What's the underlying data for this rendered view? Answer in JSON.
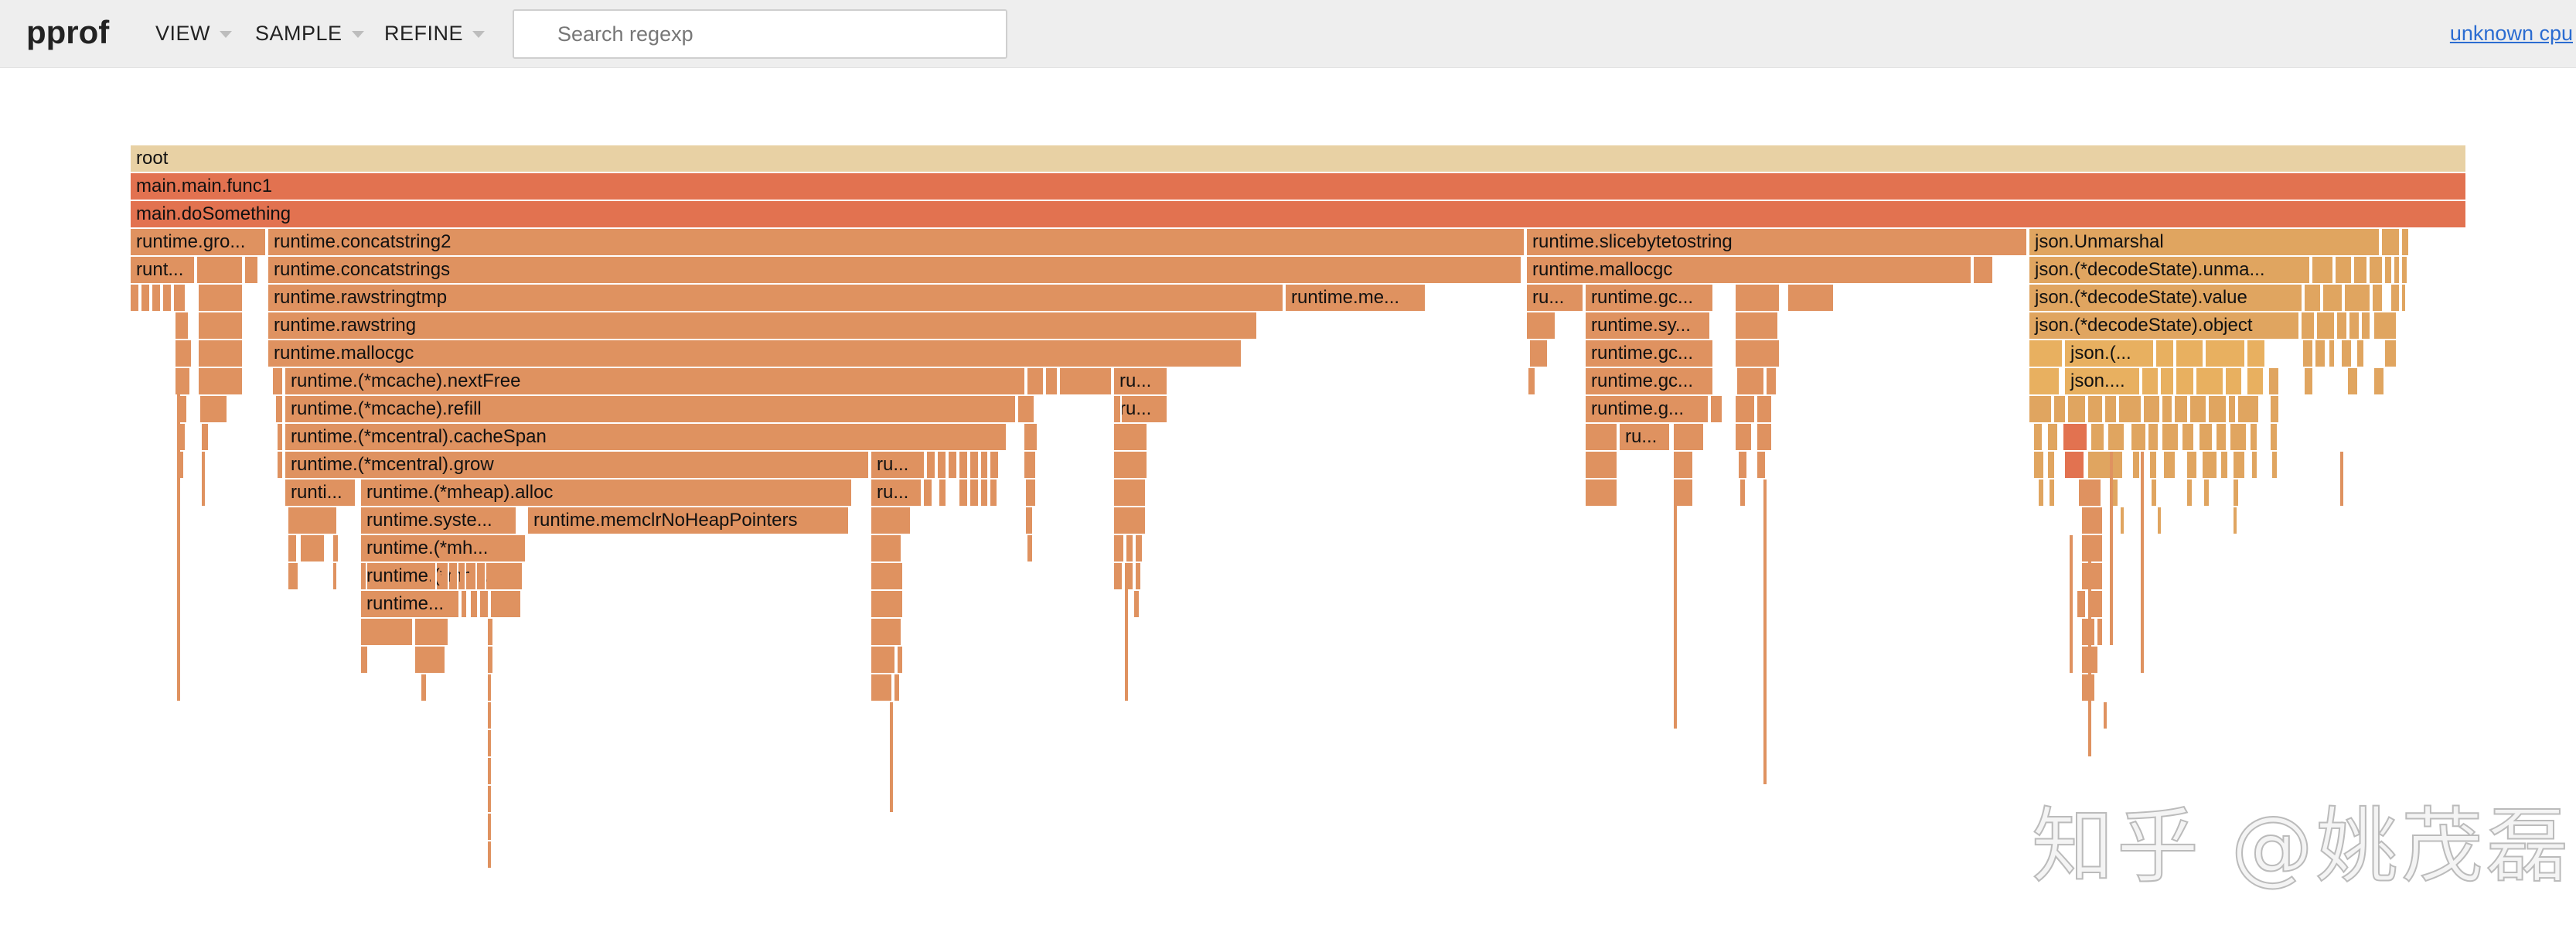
{
  "header": {
    "app_title": "pprof",
    "menus": [
      {
        "label": "VIEW"
      },
      {
        "label": "SAMPLE"
      },
      {
        "label": "REFINE"
      }
    ],
    "search_placeholder": "Search regexp",
    "search_value": "",
    "profile_link": "unknown cpu"
  },
  "colors": {
    "root": "#e8d1a4",
    "hot": "#e27250",
    "warm": "#df9260",
    "light": "#e0a560",
    "pale": "#e8b060"
  },
  "flame": {
    "frames": [
      {
        "label": "root"
      },
      {
        "label": "main.main.func1"
      },
      {
        "label": "main.doSomething"
      },
      {
        "label": "runtime.gro..."
      },
      {
        "label": "runtime.concatstring2"
      },
      {
        "label": "runtime.slicebytetostring"
      },
      {
        "label": "json.Unmarshal"
      },
      {
        "label": "runt..."
      },
      {
        "label": "runtime.concatstrings"
      },
      {
        "label": "runtime.mallocgc"
      },
      {
        "label": "json.(*decodeState).unma..."
      },
      {
        "label": "runtime.rawstringtmp"
      },
      {
        "label": "runtime.me..."
      },
      {
        "label": "ru..."
      },
      {
        "label": "runtime.gc..."
      },
      {
        "label": "json.(*decodeState).value"
      },
      {
        "label": "runtime.rawstring"
      },
      {
        "label": "runtime.sy..."
      },
      {
        "label": "json.(*decodeState).object"
      },
      {
        "label": "runtime.mallocgc"
      },
      {
        "label": "runtime.gc..."
      },
      {
        "label": "json.(..."
      },
      {
        "label": "runtime.(*mcache).nextFree"
      },
      {
        "label": "ru..."
      },
      {
        "label": "runtime.gc..."
      },
      {
        "label": "json...."
      },
      {
        "label": "runtime.(*mcache).refill"
      },
      {
        "label": "ru..."
      },
      {
        "label": "runtime.g..."
      },
      {
        "label": "runtime.(*mcentral).cacheSpan"
      },
      {
        "label": "ru..."
      },
      {
        "label": "runtime.(*mcentral).grow"
      },
      {
        "label": "ru..."
      },
      {
        "label": "runti..."
      },
      {
        "label": "runtime.(*mheap).alloc"
      },
      {
        "label": "ru..."
      },
      {
        "label": "runtime.syste..."
      },
      {
        "label": "runtime.memclrNoHeapPointers"
      },
      {
        "label": "runtime.(*mh..."
      },
      {
        "label": "runtime.(*mh..."
      },
      {
        "label": "runtime..."
      }
    ]
  },
  "watermark": "知乎 @姚茂磊"
}
